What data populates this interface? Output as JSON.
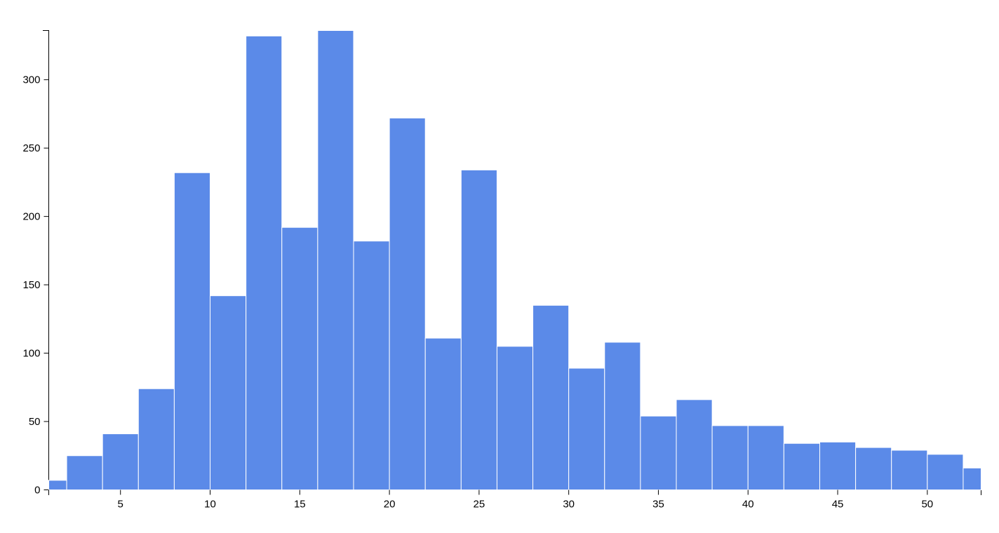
{
  "chart_data": {
    "type": "histogram",
    "bins": [
      1,
      2,
      4,
      6,
      8,
      10,
      12,
      14,
      16,
      18,
      20,
      22,
      24,
      26,
      28,
      30,
      32,
      34,
      36,
      38,
      40,
      42,
      44,
      46,
      48,
      50,
      52,
      53
    ],
    "counts": [
      7,
      25,
      41,
      74,
      232,
      142,
      332,
      192,
      336,
      182,
      272,
      111,
      234,
      105,
      135,
      89,
      108,
      54,
      66,
      47,
      47,
      34,
      35,
      31,
      29,
      26,
      16
    ],
    "color": "#5b8ae8",
    "xlim": [
      1,
      53
    ],
    "xticks": [
      5,
      10,
      15,
      20,
      25,
      30,
      35,
      40,
      45,
      50
    ],
    "ylim": [
      0,
      336
    ],
    "yticks": [
      0,
      50,
      100,
      150,
      200,
      250,
      300
    ]
  }
}
